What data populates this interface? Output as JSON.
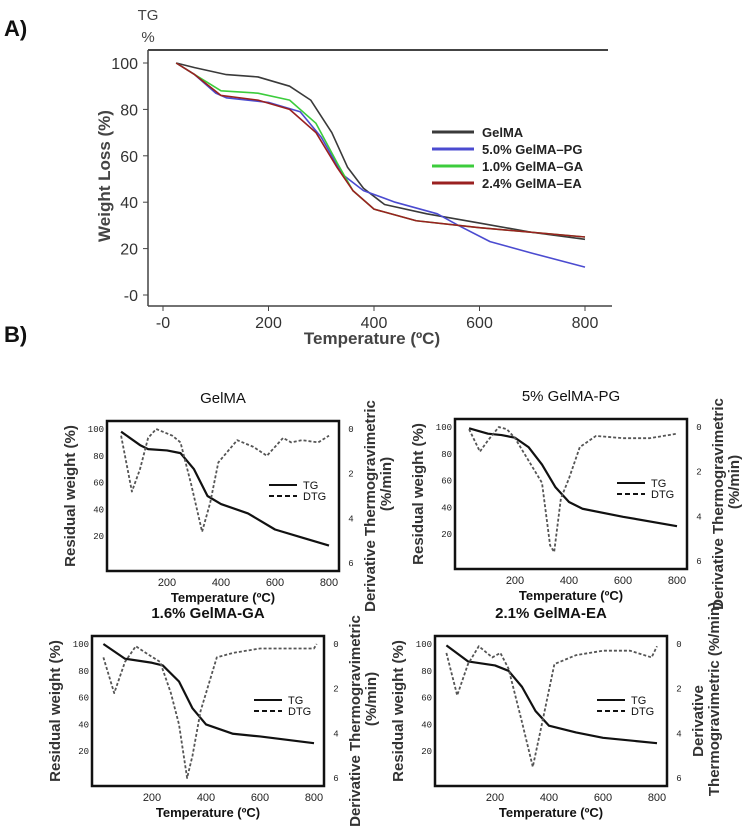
{
  "labels": {
    "a": "A)",
    "b": "B)"
  },
  "chart_data": [
    {
      "type": "line",
      "panel": "A",
      "title": "",
      "corner_label": [
        "TG",
        "%"
      ],
      "xlabel": "Temperature (ºC)",
      "ylabel": "Weight Loss (%)",
      "xlim": [
        0,
        800
      ],
      "ylim": [
        0,
        100
      ],
      "xticks": [
        "-0",
        "200",
        "400",
        "600",
        "800"
      ],
      "xtick_values": [
        0,
        200,
        400,
        600,
        800
      ],
      "yticks": [
        "-0",
        "20",
        "40",
        "60",
        "80",
        "100"
      ],
      "ytick_values": [
        0,
        20,
        40,
        60,
        80,
        100
      ],
      "legend_position": "right",
      "series": [
        {
          "name": "GelMA",
          "color": "#3a3a3a",
          "points": [
            [
              25,
              100
            ],
            [
              60,
              98
            ],
            [
              120,
              95
            ],
            [
              180,
              94
            ],
            [
              240,
              90
            ],
            [
              280,
              84
            ],
            [
              320,
              70
            ],
            [
              350,
              55
            ],
            [
              380,
              46
            ],
            [
              420,
              39
            ],
            [
              500,
              35
            ],
            [
              600,
              31
            ],
            [
              700,
              27
            ],
            [
              800,
              24
            ]
          ]
        },
        {
          "name": "5.0% GelMA–PG",
          "color": "#4b4bd0",
          "points": [
            [
              25,
              100
            ],
            [
              60,
              95
            ],
            [
              100,
              87
            ],
            [
              120,
              85
            ],
            [
              200,
              83
            ],
            [
              260,
              79
            ],
            [
              300,
              68
            ],
            [
              340,
              52
            ],
            [
              380,
              45
            ],
            [
              440,
              40
            ],
            [
              520,
              35
            ],
            [
              560,
              30
            ],
            [
              620,
              23
            ],
            [
              700,
              18
            ],
            [
              800,
              12
            ]
          ]
        },
        {
          "name": "1.0% GelMA–GA",
          "color": "#3ccc3c",
          "points": [
            [
              25,
              100
            ],
            [
              60,
              95
            ],
            [
              110,
              88
            ],
            [
              180,
              87
            ],
            [
              240,
              84
            ],
            [
              290,
              74
            ],
            [
              330,
              57
            ],
            [
              360,
              45
            ],
            [
              400,
              37
            ],
            [
              480,
              32
            ],
            [
              600,
              29
            ],
            [
              800,
              25
            ]
          ]
        },
        {
          "name": "2.4% GelMA–EA",
          "color": "#9a2020",
          "points": [
            [
              25,
              100
            ],
            [
              60,
              95
            ],
            [
              110,
              86
            ],
            [
              180,
              84
            ],
            [
              240,
              80
            ],
            [
              290,
              70
            ],
            [
              330,
              55
            ],
            [
              360,
              45
            ],
            [
              400,
              37
            ],
            [
              480,
              32
            ],
            [
              600,
              29
            ],
            [
              800,
              25
            ]
          ]
        }
      ]
    },
    {
      "type": "line",
      "panel": "B1",
      "title": "GelMA",
      "xlabel": "Temperature (ºC)",
      "ylabel": "Residual weight (%)",
      "y2label": [
        "Derivative Thermogravimetric",
        "(%/min)"
      ],
      "xlim": [
        0,
        800
      ],
      "ylim": [
        0,
        100
      ],
      "y2lim": [
        0,
        6
      ],
      "xticks": [
        "200",
        "400",
        "600",
        "800"
      ],
      "yticks": [
        "20",
        "40",
        "60",
        "80",
        "100"
      ],
      "y2ticks": [
        "0",
        "2",
        "4",
        "6"
      ],
      "legend": [
        "TG",
        "DTG"
      ],
      "series": [
        {
          "name": "TG",
          "axis": "left",
          "points": [
            [
              30,
              98
            ],
            [
              100,
              88
            ],
            [
              130,
              85
            ],
            [
              200,
              84
            ],
            [
              250,
              82
            ],
            [
              300,
              70
            ],
            [
              350,
              50
            ],
            [
              400,
              44
            ],
            [
              500,
              37
            ],
            [
              600,
              25
            ],
            [
              700,
              19
            ],
            [
              800,
              13
            ]
          ]
        },
        {
          "name": "DTG",
          "axis": "right",
          "points": [
            [
              30,
              0.3
            ],
            [
              70,
              2.8
            ],
            [
              100,
              1.8
            ],
            [
              130,
              0.4
            ],
            [
              160,
              0
            ],
            [
              220,
              0.3
            ],
            [
              250,
              0.6
            ],
            [
              290,
              2.5
            ],
            [
              330,
              4.6
            ],
            [
              360,
              3.3
            ],
            [
              390,
              1.5
            ],
            [
              460,
              0.5
            ],
            [
              520,
              0.8
            ],
            [
              570,
              1.2
            ],
            [
              630,
              0.4
            ],
            [
              660,
              0.6
            ],
            [
              700,
              0.5
            ],
            [
              760,
              0.6
            ],
            [
              800,
              0.3
            ]
          ]
        }
      ]
    },
    {
      "type": "line",
      "panel": "B2",
      "title": "5% GelMA-PG",
      "xlabel": "Temperature (ºC)",
      "ylabel": "Residual weight (%)",
      "y2label": [
        "Derivative Thermogravimetric",
        "(%/min)"
      ],
      "xlim": [
        0,
        800
      ],
      "ylim": [
        0,
        100
      ],
      "y2lim": [
        0,
        6
      ],
      "xticks": [
        "200",
        "400",
        "600",
        "800"
      ],
      "yticks": [
        "20",
        "40",
        "60",
        "80",
        "100"
      ],
      "y2ticks": [
        "0",
        "2",
        "4",
        "6"
      ],
      "legend": [
        "TG",
        "DTG"
      ],
      "series": [
        {
          "name": "TG",
          "axis": "left",
          "points": [
            [
              30,
              99
            ],
            [
              100,
              95
            ],
            [
              150,
              94
            ],
            [
              200,
              92
            ],
            [
              250,
              85
            ],
            [
              300,
              72
            ],
            [
              350,
              55
            ],
            [
              400,
              44
            ],
            [
              450,
              39
            ],
            [
              600,
              33
            ],
            [
              800,
              26
            ]
          ]
        },
        {
          "name": "DTG",
          "axis": "right",
          "points": [
            [
              30,
              0.1
            ],
            [
              70,
              1.1
            ],
            [
              100,
              0.6
            ],
            [
              140,
              0
            ],
            [
              170,
              0.1
            ],
            [
              200,
              0.5
            ],
            [
              260,
              1.7
            ],
            [
              300,
              2.5
            ],
            [
              330,
              5.3
            ],
            [
              345,
              5.6
            ],
            [
              370,
              3.2
            ],
            [
              400,
              2.3
            ],
            [
              440,
              0.9
            ],
            [
              500,
              0.4
            ],
            [
              600,
              0.5
            ],
            [
              700,
              0.5
            ],
            [
              800,
              0.3
            ]
          ]
        }
      ]
    },
    {
      "type": "line",
      "panel": "B3",
      "title": "1.6% GelMA-GA",
      "xlabel": "Temperature (ºC)",
      "ylabel": "Residual weight (%)",
      "y2label": [
        "Derivative Thermogravimetric",
        "(%/min)"
      ],
      "xlim": [
        0,
        800
      ],
      "ylim": [
        0,
        100
      ],
      "y2lim": [
        0,
        6
      ],
      "xticks": [
        "200",
        "400",
        "600",
        "800"
      ],
      "yticks": [
        "20",
        "40",
        "60",
        "80",
        "100"
      ],
      "y2ticks": [
        "0",
        "2",
        "4",
        "6"
      ],
      "legend": [
        "TG",
        "DTG"
      ],
      "series": [
        {
          "name": "TG",
          "axis": "left",
          "points": [
            [
              20,
              100
            ],
            [
              100,
              89
            ],
            [
              200,
              86
            ],
            [
              240,
              84
            ],
            [
              300,
              72
            ],
            [
              350,
              52
            ],
            [
              400,
              40
            ],
            [
              500,
              33
            ],
            [
              600,
              31
            ],
            [
              800,
              26
            ]
          ]
        },
        {
          "name": "DTG",
          "axis": "right",
          "points": [
            [
              20,
              0.6
            ],
            [
              60,
              2.2
            ],
            [
              100,
              0.8
            ],
            [
              140,
              0.1
            ],
            [
              190,
              0.5
            ],
            [
              230,
              0.8
            ],
            [
              270,
              2.2
            ],
            [
              300,
              3.6
            ],
            [
              330,
              6
            ],
            [
              350,
              5
            ],
            [
              380,
              3
            ],
            [
              440,
              0.6
            ],
            [
              500,
              0.4
            ],
            [
              600,
              0.2
            ],
            [
              800,
              0.2
            ],
            [
              810,
              0
            ]
          ]
        }
      ]
    },
    {
      "type": "line",
      "panel": "B4",
      "title": "2.1% GelMA-EA",
      "xlabel": "Temperature (ºC)",
      "ylabel": "Residual weight (%)",
      "y2label": [
        "Derivative",
        "Thermogravimetric (%/min)"
      ],
      "xlim": [
        0,
        800
      ],
      "ylim": [
        0,
        100
      ],
      "y2lim": [
        0,
        6
      ],
      "xticks": [
        "200",
        "400",
        "600",
        "800"
      ],
      "yticks": [
        "20",
        "40",
        "60",
        "80",
        "100"
      ],
      "y2ticks": [
        "0",
        "2",
        "4",
        "6"
      ],
      "legend": [
        "TG",
        "DTG"
      ],
      "series": [
        {
          "name": "TG",
          "axis": "left",
          "points": [
            [
              20,
              99
            ],
            [
              100,
              87
            ],
            [
              200,
              84
            ],
            [
              250,
              80
            ],
            [
              300,
              68
            ],
            [
              350,
              50
            ],
            [
              400,
              39
            ],
            [
              500,
              34
            ],
            [
              600,
              30
            ],
            [
              800,
              26
            ]
          ]
        },
        {
          "name": "DTG",
          "axis": "right",
          "points": [
            [
              20,
              0.4
            ],
            [
              60,
              2.3
            ],
            [
              100,
              0.9
            ],
            [
              140,
              0.1
            ],
            [
              190,
              0.6
            ],
            [
              220,
              0.4
            ],
            [
              250,
              1.1
            ],
            [
              300,
              3.5
            ],
            [
              340,
              5.5
            ],
            [
              370,
              3.8
            ],
            [
              420,
              0.9
            ],
            [
              500,
              0.5
            ],
            [
              600,
              0.3
            ],
            [
              700,
              0.3
            ],
            [
              780,
              0.6
            ],
            [
              800,
              0.1
            ]
          ]
        }
      ]
    }
  ]
}
